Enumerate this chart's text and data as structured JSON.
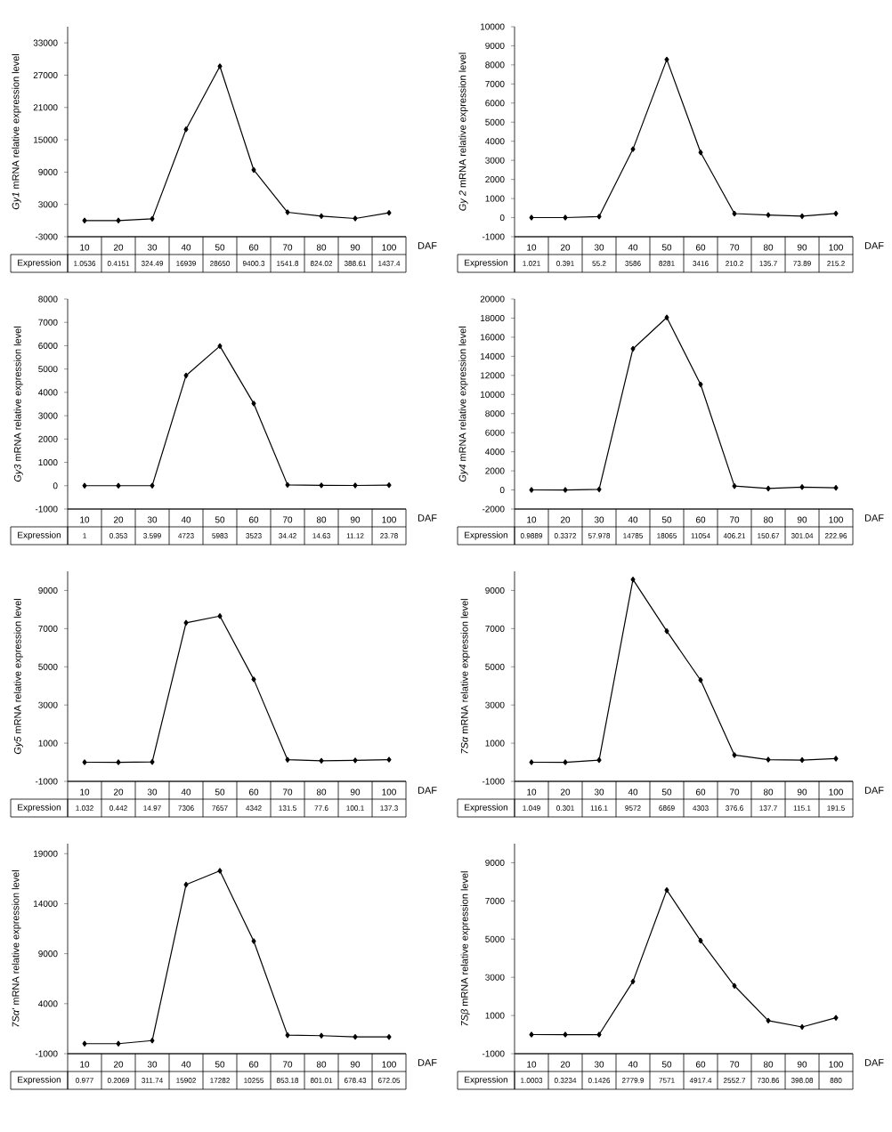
{
  "chart_data": [
    {
      "type": "line",
      "ylabel": "*Gy1* mRNA relative expression level",
      "xlabel": "DAF",
      "categories": [
        "10",
        "20",
        "30",
        "40",
        "50",
        "60",
        "70",
        "80",
        "90",
        "100"
      ],
      "values": [
        1.0536,
        0.4151,
        324.49,
        16939,
        28650,
        9400.3,
        1541.8,
        824.02,
        388.61,
        1437.4
      ],
      "ylim": [
        -3000,
        36000
      ],
      "yticks": [
        -3000,
        3000,
        9000,
        15000,
        21000,
        27000,
        33000
      ],
      "marker": "diamond",
      "data_labels": true,
      "annotations": [
        "Expression"
      ]
    },
    {
      "type": "line",
      "ylabel": "*Gy 2* mRNA relative expression level",
      "xlabel": "DAF",
      "categories": [
        "10",
        "20",
        "30",
        "40",
        "50",
        "60",
        "70",
        "80",
        "90",
        "100"
      ],
      "values": [
        1.021,
        0.391,
        55.2,
        3586,
        8281,
        3416,
        210.2,
        135.7,
        73.89,
        215.2
      ],
      "ylim": [
        -1000,
        10000
      ],
      "yticks": [
        -1000,
        0,
        1000,
        2000,
        3000,
        4000,
        5000,
        6000,
        7000,
        8000,
        9000,
        10000
      ],
      "marker": "diamond",
      "data_labels": true,
      "annotations": [
        "Expression"
      ]
    },
    {
      "type": "line",
      "ylabel": "*Gy3* mRNA relative expression level",
      "xlabel": "DAF",
      "categories": [
        "10",
        "20",
        "30",
        "40",
        "50",
        "60",
        "70",
        "80",
        "90",
        "100"
      ],
      "values": [
        1,
        0.353,
        3.599,
        4723,
        5983,
        3523,
        34.42,
        14.63,
        11.12,
        23.78
      ],
      "ylim": [
        -1000,
        8000
      ],
      "yticks": [
        -1000,
        0,
        1000,
        2000,
        3000,
        4000,
        5000,
        6000,
        7000,
        8000
      ],
      "marker": "diamond",
      "data_labels": true,
      "annotations": [
        "Expression"
      ]
    },
    {
      "type": "line",
      "ylabel": "*Gy4* mRNA relative expression level",
      "xlabel": "DAF",
      "categories": [
        "10",
        "20",
        "30",
        "40",
        "50",
        "60",
        "70",
        "80",
        "90",
        "100"
      ],
      "values": [
        0.9889,
        0.3372,
        57.978,
        14785,
        18065,
        11054,
        406.21,
        150.67,
        301.04,
        222.96
      ],
      "ylim": [
        -2000,
        20000
      ],
      "yticks": [
        -2000,
        0,
        2000,
        4000,
        6000,
        8000,
        10000,
        12000,
        14000,
        16000,
        18000,
        20000
      ],
      "marker": "diamond",
      "data_labels": true,
      "annotations": [
        "Expression"
      ]
    },
    {
      "type": "line",
      "ylabel": "*Gy5* mRNA relative expression level",
      "xlabel": "DAF",
      "categories": [
        "10",
        "20",
        "30",
        "40",
        "50",
        "60",
        "70",
        "80",
        "90",
        "100"
      ],
      "values": [
        1.032,
        0.442,
        14.97,
        7306,
        7657,
        4342,
        131.5,
        77.6,
        100.1,
        137.3
      ],
      "ylim": [
        -1000,
        10000
      ],
      "yticks": [
        -1000,
        1000,
        3000,
        5000,
        7000,
        9000
      ],
      "marker": "diamond",
      "data_labels": true,
      "annotations": [
        "Expression"
      ]
    },
    {
      "type": "line",
      "ylabel": "*7Sα* mRNA relative expression level",
      "xlabel": "DAF",
      "categories": [
        "10",
        "20",
        "30",
        "40",
        "50",
        "60",
        "70",
        "80",
        "90",
        "100"
      ],
      "values": [
        1.049,
        0.301,
        116.1,
        9572,
        6869,
        4303,
        376.6,
        137.7,
        115.1,
        191.5
      ],
      "ylim": [
        -1000,
        10000
      ],
      "yticks": [
        -1000,
        1000,
        3000,
        5000,
        7000,
        9000
      ],
      "marker": "diamond",
      "data_labels": true,
      "annotations": [
        "Expression"
      ]
    },
    {
      "type": "line",
      "ylabel": "*7Sα'* mRNA relative expression level",
      "xlabel": "DAF",
      "categories": [
        "10",
        "20",
        "30",
        "40",
        "50",
        "60",
        "70",
        "80",
        "90",
        "100"
      ],
      "values": [
        0.977,
        0.2069,
        311.74,
        15902,
        17282,
        10255,
        853.18,
        801.01,
        678.43,
        672.05
      ],
      "ylim": [
        -1000,
        20000
      ],
      "yticks": [
        -1000,
        4000,
        9000,
        14000,
        19000
      ],
      "marker": "diamond",
      "data_labels": true,
      "annotations": [
        "Expression"
      ]
    },
    {
      "type": "line",
      "ylabel": "*7Sβ* mRNA relative expression level",
      "xlabel": "DAF",
      "categories": [
        "10",
        "20",
        "30",
        "40",
        "50",
        "60",
        "70",
        "80",
        "90",
        "100"
      ],
      "values": [
        1.0003,
        0.3234,
        0.1426,
        2779.9,
        7571,
        4917.4,
        2552.7,
        730.86,
        398.08,
        880
      ],
      "ylim": [
        -1000,
        10000
      ],
      "yticks": [
        -1000,
        1000,
        3000,
        5000,
        7000,
        9000
      ],
      "marker": "diamond",
      "data_labels": true,
      "annotations": [
        "Expression"
      ]
    }
  ]
}
